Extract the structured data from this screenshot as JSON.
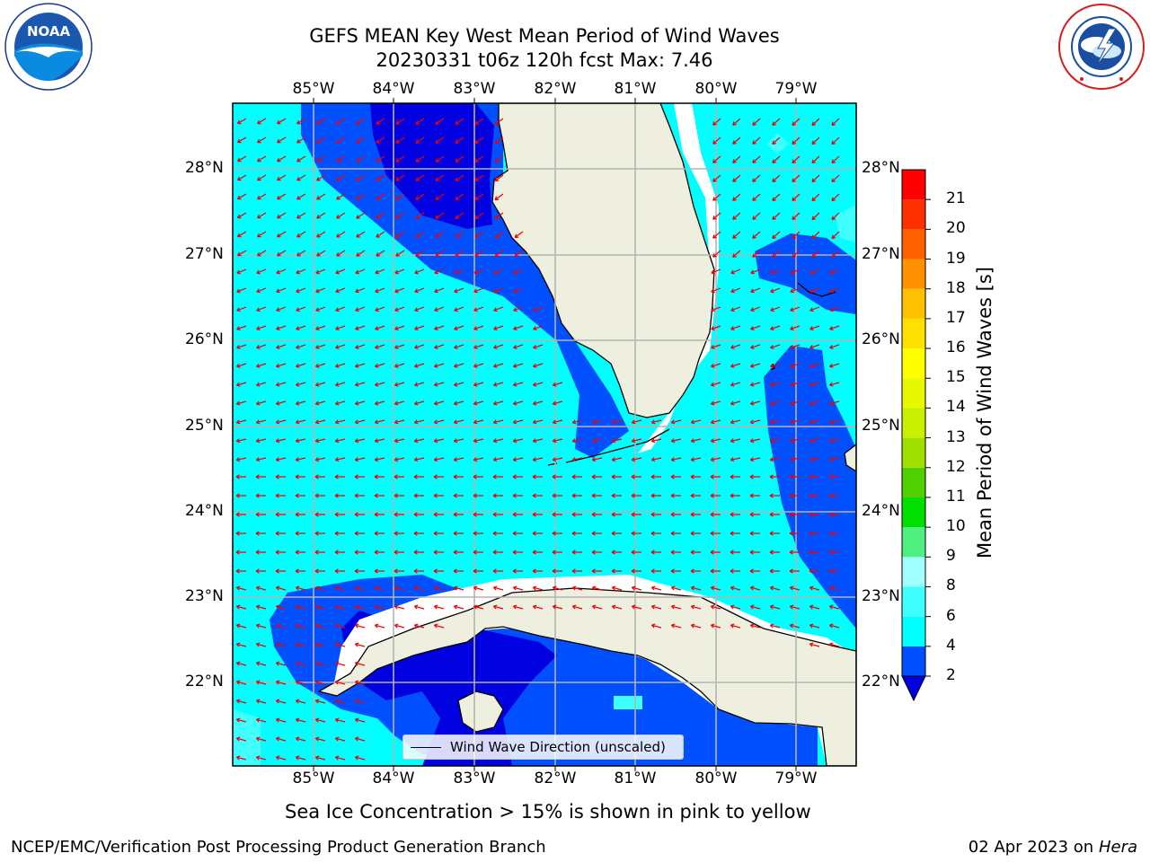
{
  "title": {
    "line1": "GEFS MEAN Key West Mean Period of Wind Waves",
    "line2": "20230331 t06z 120h fcst   Max: 7.46"
  },
  "logos": {
    "left": {
      "icon": "noaa-logo",
      "text": "NOAA",
      "ring_text": "NATIONAL OCEANIC AND ATMOSPHERIC ADMINISTRATION · U.S. DEPARTMENT OF COMMERCE"
    },
    "right": {
      "icon": "nws-logo",
      "ring_text": "NATIONAL WEATHER SERVICE"
    }
  },
  "map": {
    "lon_labels": [
      "85°W",
      "84°W",
      "83°W",
      "82°W",
      "81°W",
      "80°W",
      "79°W"
    ],
    "lat_labels": [
      "28°N",
      "27°N",
      "26°N",
      "25°N",
      "24°N",
      "23°N",
      "22°N"
    ],
    "gridlines": true,
    "vector_color": "#ee0000",
    "land_color": "#efefdf"
  },
  "legend": {
    "label": "Wind Wave Direction (unscaled)"
  },
  "colorbar": {
    "title": "Mean Period of Wind Waves [s]",
    "ticks": [
      "2",
      "4",
      "6",
      "8",
      "9",
      "10",
      "11",
      "12",
      "13",
      "14",
      "15",
      "16",
      "17",
      "18",
      "19",
      "20",
      "21"
    ],
    "colors": [
      "#0050ff",
      "#00ffff",
      "#40ffff",
      "#a0ffff",
      "#50f080",
      "#00e000",
      "#50d000",
      "#a0e000",
      "#c8f000",
      "#e8f800",
      "#ffff00",
      "#ffe000",
      "#ffc000",
      "#ff9000",
      "#ff6000",
      "#ff3000",
      "#ff0000"
    ],
    "under_color": "#0000e0"
  },
  "notes": {
    "sea_ice": "Sea Ice Concentration > 15% is shown in pink to yellow"
  },
  "footer": {
    "left": "NCEP/EMC/Verification Post Processing Product Generation Branch",
    "right_date": "02 Apr 2023 on ",
    "right_machine": "Hera"
  }
}
